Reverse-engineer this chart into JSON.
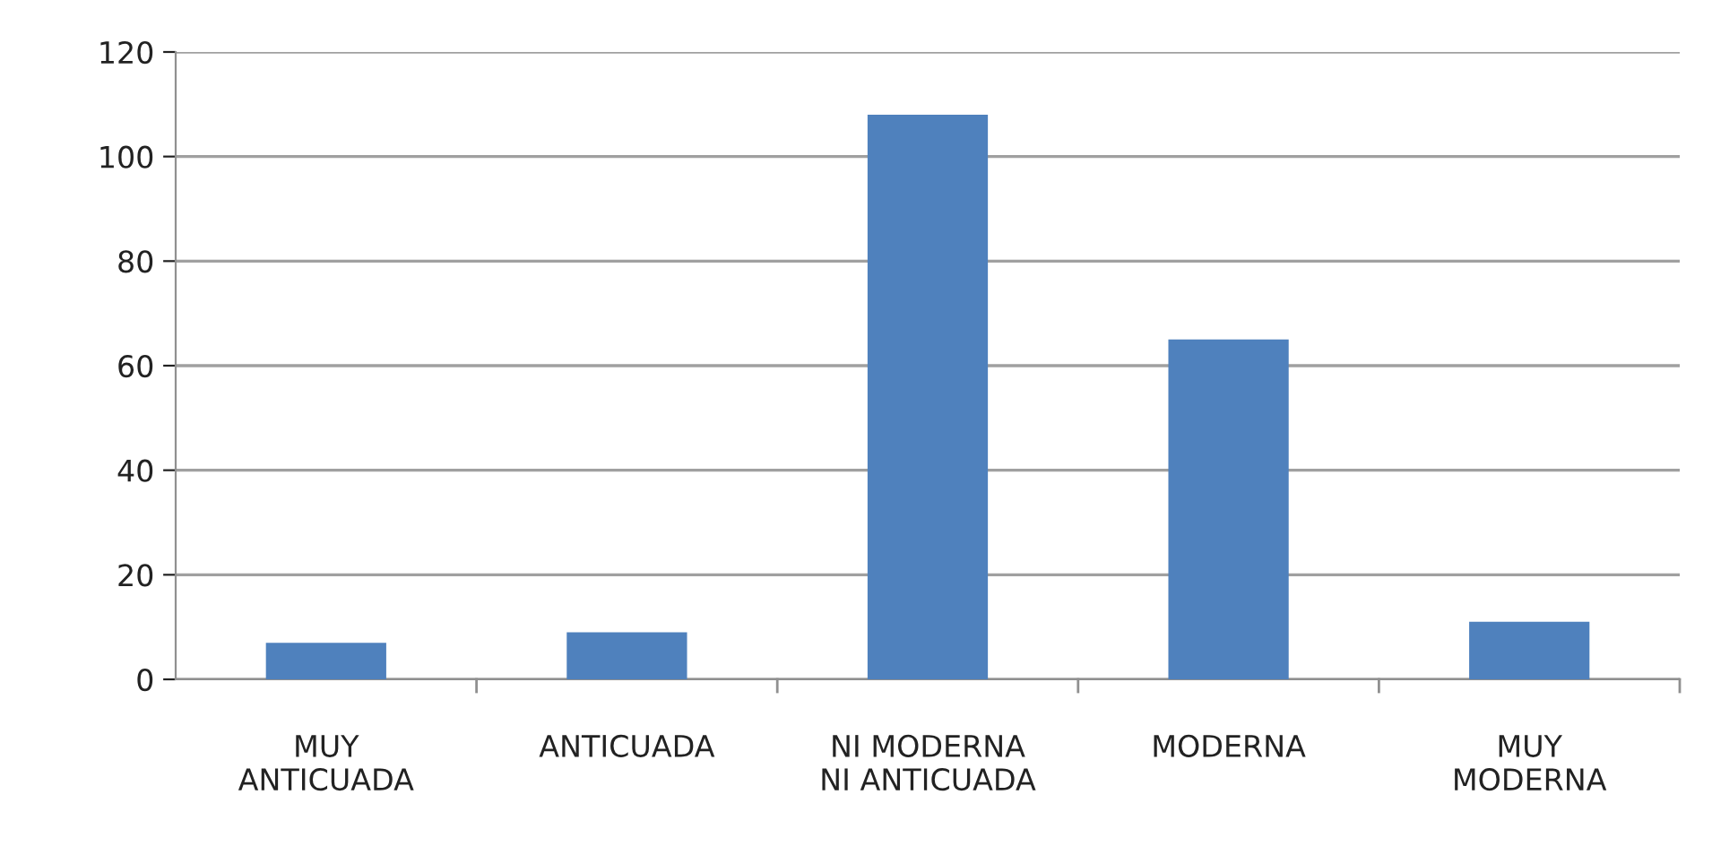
{
  "chart_data": {
    "type": "bar",
    "categories": [
      "MUY\nANTICUADA",
      "ANTICUADA",
      "NI MODERNA\nNI ANTICUADA",
      "MODERNA",
      "MUY\nMODERNA"
    ],
    "values": [
      7,
      9,
      108,
      65,
      11
    ],
    "color": "#4f81bd",
    "ylim": [
      0,
      120
    ],
    "yticks": [
      0,
      20,
      40,
      60,
      80,
      100,
      120
    ],
    "grid": "y",
    "legend": false
  }
}
